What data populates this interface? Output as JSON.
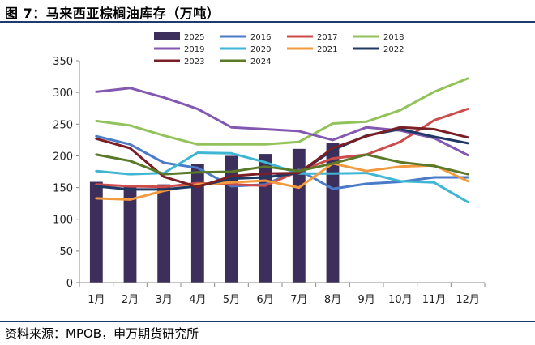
{
  "title": "图 7：马来西亚棕榈油库存（万吨）",
  "source": "资料来源：MPOB，申万期货研究所",
  "chart_data": {
    "type": "bar",
    "categories": [
      "1月",
      "2月",
      "3月",
      "4月",
      "5月",
      "6月",
      "7月",
      "8月",
      "9月",
      "10月",
      "11月",
      "12月"
    ],
    "ylim": [
      0,
      350
    ],
    "yticks": [
      "0",
      "50",
      "100",
      "150",
      "200",
      "250",
      "300",
      "350"
    ],
    "legend_position": "top",
    "bar_series": {
      "name": "2025",
      "color": "#3d2f5b",
      "values": [
        159,
        151,
        155,
        187,
        200,
        203,
        211,
        220
      ]
    },
    "series": [
      {
        "name": "2016",
        "color": "#4a7ac8",
        "values": [
          231,
          218,
          189,
          181,
          152,
          155,
          178,
          148,
          156,
          159,
          166,
          166
        ]
      },
      {
        "name": "2017",
        "color": "#cc4b4b",
        "values": [
          155,
          152,
          151,
          157,
          155,
          153,
          176,
          196,
          202,
          222,
          256,
          274
        ]
      },
      {
        "name": "2018",
        "color": "#92c35a",
        "values": [
          255,
          248,
          232,
          218,
          218,
          218,
          222,
          251,
          254,
          272,
          301,
          322
        ]
      },
      {
        "name": "2019",
        "color": "#8358b0",
        "values": [
          301,
          307,
          292,
          274,
          245,
          242,
          239,
          225,
          245,
          240,
          228,
          201
        ]
      },
      {
        "name": "2020",
        "color": "#3fb6d4",
        "values": [
          176,
          171,
          173,
          205,
          204,
          190,
          172,
          172,
          173,
          160,
          158,
          127
        ]
      },
      {
        "name": "2021",
        "color": "#f29a3f",
        "values": [
          133,
          131,
          145,
          155,
          158,
          161,
          150,
          188,
          176,
          183,
          185,
          160
        ]
      },
      {
        "name": "2022",
        "color": "#1f3864",
        "values": [
          152,
          147,
          147,
          152,
          164,
          166,
          173,
          209,
          232,
          242,
          230,
          220
        ]
      },
      {
        "name": "2023",
        "color": "#7b1f26",
        "values": [
          227,
          212,
          167,
          151,
          168,
          172,
          173,
          212,
          231,
          245,
          242,
          229
        ]
      },
      {
        "name": "2024",
        "color": "#5a7a2a",
        "values": [
          202,
          192,
          171,
          174,
          175,
          183,
          176,
          188,
          202,
          190,
          184,
          171
        ]
      }
    ]
  }
}
